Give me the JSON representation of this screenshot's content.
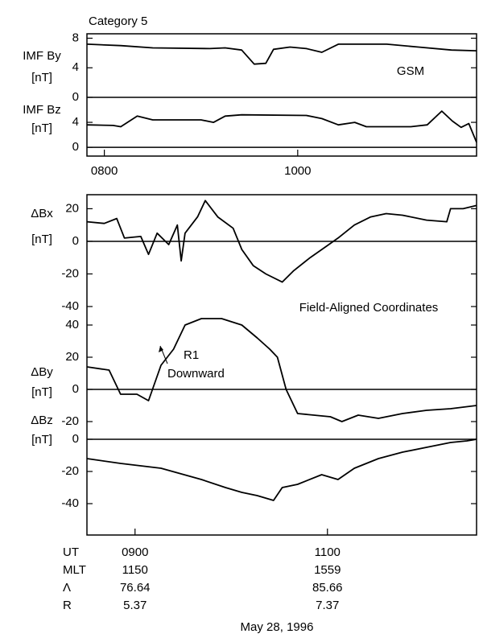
{
  "chart_data": [
    {
      "type": "line",
      "title": "Category 5",
      "ylabel": [
        "IMF By",
        "[nT]"
      ],
      "annotation": "GSM",
      "x": [
        7.82,
        8.17,
        8.5,
        9.09,
        9.25,
        9.42,
        9.55,
        9.67,
        9.75,
        9.92,
        10.09,
        10.25,
        10.42,
        10.92,
        11.25,
        11.59,
        11.85
      ],
      "series": [
        {
          "name": "IMF By",
          "color": "#000000",
          "values": [
            7.2,
            7.0,
            6.7,
            6.6,
            6.7,
            6.4,
            4.5,
            4.6,
            6.5,
            6.8,
            6.6,
            6.1,
            7.2,
            7.2,
            6.8,
            6.4,
            6.3
          ]
        }
      ],
      "xlim": [
        7.82,
        11.85
      ],
      "ylim": [
        0,
        8.6
      ],
      "yticks": [
        0,
        4,
        8
      ],
      "zero_line": true
    },
    {
      "type": "line",
      "ylabel": [
        "IMF Bz",
        "[nT]"
      ],
      "x": [
        7.82,
        8.09,
        8.17,
        8.34,
        8.5,
        9.0,
        9.13,
        9.25,
        9.42,
        10.09,
        10.25,
        10.42,
        10.59,
        10.71,
        11.17,
        11.34,
        11.49,
        11.6,
        11.69,
        11.77,
        11.85
      ],
      "series": [
        {
          "name": "IMF Bz",
          "color": "#000000",
          "values": [
            3.6,
            3.5,
            3.3,
            5.0,
            4.4,
            4.4,
            4.0,
            5.0,
            5.2,
            5.1,
            4.6,
            3.6,
            4.0,
            3.3,
            3.3,
            3.6,
            5.8,
            4.2,
            3.2,
            3.8,
            0.8
          ]
        }
      ],
      "xlim": [
        7.82,
        11.85
      ],
      "ylim": [
        -1.4,
        8
      ],
      "yticks": [
        0,
        4
      ],
      "zero_line": true,
      "xticks": [
        {
          "value": 8,
          "label": "0800"
        },
        {
          "value": 10,
          "label": "1000"
        }
      ]
    },
    {
      "type": "line",
      "ylabel": [
        "ΔBx",
        "[nT]"
      ],
      "annotation": "Field-Aligned Coordinates",
      "x": [
        8.5,
        8.68,
        8.81,
        8.89,
        9.06,
        9.14,
        9.23,
        9.35,
        9.44,
        9.48,
        9.52,
        9.65,
        9.73,
        9.86,
        10.02,
        10.11,
        10.23,
        10.36,
        10.53,
        10.65,
        10.82,
        10.99,
        11.11,
        11.28,
        11.45,
        11.61,
        11.78,
        12.03,
        12.24,
        12.28,
        12.41,
        12.55
      ],
      "series": [
        {
          "name": "ΔBx",
          "color": "#000000",
          "values": [
            12,
            11,
            14,
            2,
            3,
            -8,
            5,
            -2,
            10,
            -12,
            5,
            15,
            25,
            15,
            8,
            -5,
            -15,
            -20,
            -25,
            -18,
            -10,
            -3,
            2,
            10,
            15,
            17,
            16,
            13,
            12,
            20,
            20,
            22
          ]
        }
      ],
      "xlim": [
        8.5,
        12.55
      ],
      "ylim": [
        -40,
        28.6
      ],
      "yticks": [
        20,
        0,
        -20,
        -40
      ],
      "zero_line": true
    },
    {
      "type": "line",
      "ylabel": [
        "ΔBy",
        "[nT]"
      ],
      "annotation": [
        "R1",
        "Downward"
      ],
      "x": [
        8.5,
        8.73,
        8.85,
        9.02,
        9.14,
        9.27,
        9.4,
        9.52,
        9.69,
        9.9,
        10.11,
        10.27,
        10.4,
        10.48,
        10.57,
        10.69,
        10.86,
        11.03,
        11.15,
        11.32,
        11.53,
        11.78,
        12.03,
        12.28,
        12.55
      ],
      "series": [
        {
          "name": "ΔBy",
          "color": "#000000",
          "values": [
            14,
            12,
            -3,
            -3,
            -7,
            15,
            25,
            40,
            44,
            44,
            40,
            32,
            25,
            20,
            0,
            -15,
            -16,
            -17,
            -20,
            -16,
            -18,
            -15,
            -13,
            -12,
            -10
          ]
        }
      ],
      "xlim": [
        8.5,
        12.55
      ],
      "ylim": [
        -30,
        48
      ],
      "yticks": [
        40,
        20,
        0,
        -20
      ],
      "zero_line": true
    },
    {
      "type": "line",
      "ylabel": [
        "ΔBz",
        "[nT]"
      ],
      "xlabel": "UT",
      "x": [
        8.5,
        8.85,
        9.27,
        9.69,
        9.94,
        10.11,
        10.27,
        10.44,
        10.53,
        10.69,
        10.94,
        11.11,
        11.28,
        11.53,
        11.78,
        12.03,
        12.28,
        12.45,
        12.55
      ],
      "series": [
        {
          "name": "ΔBz",
          "color": "#000000",
          "values": [
            -12,
            -15,
            -18,
            -25,
            -30,
            -33,
            -35,
            -38,
            -30,
            -28,
            -22,
            -25,
            -18,
            -12,
            -8,
            -5,
            -2,
            -1,
            0
          ]
        }
      ],
      "xlim": [
        8.5,
        12.55
      ],
      "ylim": [
        -59.5,
        1
      ],
      "yticks": [
        0,
        -20,
        -40
      ],
      "zero_line": true,
      "xticks": [
        {
          "value": 9,
          "label": "0900"
        },
        {
          "value": 11,
          "label": "1100"
        }
      ]
    }
  ],
  "ephemeris": [
    {
      "label": "MLT",
      "values": [
        1150,
        1559
      ]
    },
    {
      "label": "Λ",
      "values": [
        76.64,
        85.66
      ]
    },
    {
      "label": "R",
      "values": [
        5.37,
        7.37
      ]
    }
  ],
  "date": "May 28, 1996"
}
